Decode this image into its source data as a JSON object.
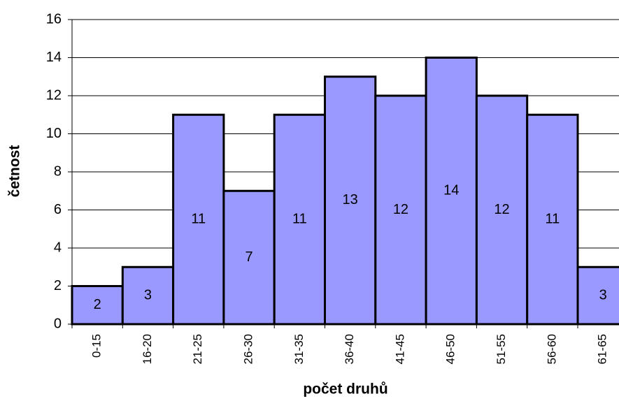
{
  "chart_data": {
    "type": "bar",
    "xlabel": "počet druhů",
    "ylabel": "četnost",
    "categories": [
      "0-15",
      "16-20",
      "21-25",
      "26-30",
      "31-35",
      "36-40",
      "41-45",
      "46-50",
      "51-55",
      "56-60",
      "61-65"
    ],
    "values": [
      2,
      3,
      11,
      7,
      11,
      13,
      12,
      14,
      12,
      11,
      3
    ],
    "color": "#9999ff",
    "ylim": [
      0,
      16
    ],
    "yticks": [
      0,
      2,
      4,
      6,
      8,
      10,
      12,
      14,
      16
    ],
    "grid": true
  }
}
